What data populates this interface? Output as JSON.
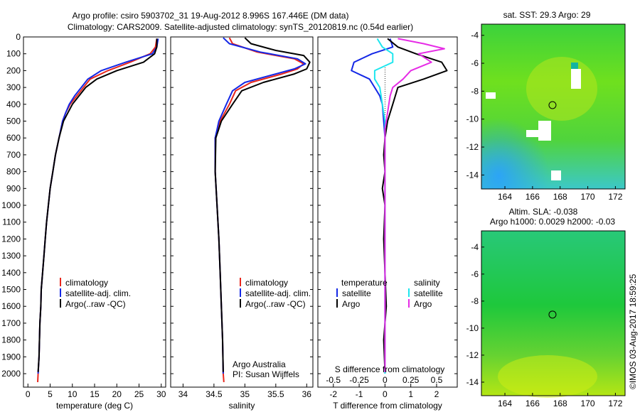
{
  "title_line1": "Argo profile: csiro 5903702_31 19-Aug-2012 8.996S 167.446E (DM data)",
  "title_line2": "Climatology: CARS2009. Satellite-adjusted climatology: synTS_20120819.nc (0.54d earlier)",
  "sst_title": "sat. SST: 29.3 Argo: 29",
  "sla_title1": "Altim. SLA: -0.038",
  "sla_title2": "Argo h1000: 0.0029 h2000: -0.03",
  "credit": "©IMOS 03-Aug-2017 18:59:25",
  "argo_label1": "Argo Australia",
  "argo_label2": "PI: Susan Wijffels",
  "colors": {
    "climatology": "#e8261c",
    "satellite": "#1428e6",
    "argo": "#000000",
    "sal_satellite": "#1ee6ee",
    "sal_argo": "#e62ce6"
  },
  "legend": {
    "climatology": "climatology",
    "satellite": "satellite-adj. clim.",
    "argo": "Argo(..raw -QC)"
  },
  "diff_legend": {
    "temp_head": "temperature",
    "sal_head": "salinity",
    "satellite": "satellite",
    "argo": "Argo"
  },
  "chart_data": [
    {
      "type": "line",
      "name": "temperature_profile",
      "xlabel": "temperature (deg C)",
      "ylabel": "",
      "xlim": [
        -1,
        31
      ],
      "ylim": [
        2080,
        0
      ],
      "xticks": [
        0,
        5,
        10,
        15,
        20,
        25,
        30
      ],
      "yticks": [
        0,
        100,
        200,
        300,
        400,
        500,
        600,
        700,
        800,
        900,
        1000,
        1100,
        1200,
        1300,
        1400,
        1500,
        1600,
        1700,
        1800,
        1900,
        2000
      ],
      "series": [
        {
          "key": "climatology",
          "points": [
            [
              29.0,
              10
            ],
            [
              28.7,
              60
            ],
            [
              27.5,
              100
            ],
            [
              23,
              150
            ],
            [
              18,
              200
            ],
            [
              14,
              250
            ],
            [
              12.5,
              300
            ],
            [
              11,
              350
            ],
            [
              9.5,
              400
            ],
            [
              8.5,
              450
            ],
            [
              7.8,
              500
            ],
            [
              7,
              600
            ],
            [
              6.2,
              700
            ],
            [
              5.6,
              800
            ],
            [
              5.0,
              900
            ],
            [
              4.6,
              1000
            ],
            [
              4.2,
              1100
            ],
            [
              3.9,
              1200
            ],
            [
              3.6,
              1300
            ],
            [
              3.3,
              1400
            ],
            [
              3.0,
              1500
            ],
            [
              2.9,
              1600
            ],
            [
              2.7,
              1700
            ],
            [
              2.6,
              1800
            ],
            [
              2.5,
              1900
            ],
            [
              2.3,
              2000
            ],
            [
              2.2,
              2050
            ]
          ]
        },
        {
          "key": "satellite",
          "points": [
            [
              29.3,
              10
            ],
            [
              29.0,
              60
            ],
            [
              28.0,
              100
            ],
            [
              22,
              150
            ],
            [
              16.5,
              200
            ],
            [
              13.5,
              250
            ],
            [
              12,
              300
            ],
            [
              10.5,
              350
            ],
            [
              9.3,
              400
            ],
            [
              8.5,
              450
            ],
            [
              7.8,
              500
            ],
            [
              7,
              600
            ],
            [
              6.2,
              700
            ],
            [
              5.6,
              800
            ],
            [
              5.0,
              900
            ],
            [
              4.6,
              1000
            ],
            [
              4.2,
              1100
            ],
            [
              3.9,
              1200
            ],
            [
              3.6,
              1300
            ],
            [
              3.3,
              1400
            ],
            [
              3.0,
              1500
            ],
            [
              2.9,
              1600
            ],
            [
              2.7,
              1700
            ],
            [
              2.6,
              1800
            ],
            [
              2.5,
              1900
            ],
            [
              2.3,
              2000
            ]
          ]
        },
        {
          "key": "argo",
          "points": [
            [
              29.0,
              10
            ],
            [
              29.0,
              60
            ],
            [
              28.5,
              100
            ],
            [
              26,
              150
            ],
            [
              20,
              200
            ],
            [
              15.5,
              250
            ],
            [
              13,
              300
            ],
            [
              11.5,
              350
            ],
            [
              10,
              400
            ],
            [
              9,
              450
            ],
            [
              8.0,
              500
            ],
            [
              7,
              600
            ],
            [
              6.2,
              700
            ],
            [
              5.6,
              800
            ],
            [
              5.0,
              900
            ],
            [
              4.6,
              1000
            ],
            [
              4.2,
              1100
            ],
            [
              3.9,
              1200
            ],
            [
              3.6,
              1300
            ],
            [
              3.3,
              1400
            ],
            [
              3.0,
              1500
            ],
            [
              2.9,
              1600
            ],
            [
              2.7,
              1700
            ],
            [
              2.6,
              1800
            ],
            [
              2.5,
              1900
            ],
            [
              2.3,
              1990
            ]
          ]
        }
      ]
    },
    {
      "type": "line",
      "name": "salinity_profile",
      "xlabel": "salinity",
      "ylabel": "",
      "xlim": [
        33.8,
        36.1
      ],
      "ylim": [
        2080,
        0
      ],
      "xticks": [
        34,
        34.5,
        35,
        35.5,
        36
      ],
      "series": [
        {
          "key": "climatology",
          "points": [
            [
              34.75,
              5
            ],
            [
              34.8,
              40
            ],
            [
              35.2,
              90
            ],
            [
              35.8,
              130
            ],
            [
              35.95,
              160
            ],
            [
              35.85,
              190
            ],
            [
              35.6,
              220
            ],
            [
              35.1,
              270
            ],
            [
              34.85,
              320
            ],
            [
              34.75,
              400
            ],
            [
              34.6,
              500
            ],
            [
              34.52,
              600
            ],
            [
              34.52,
              800
            ],
            [
              34.55,
              1000
            ],
            [
              34.58,
              1200
            ],
            [
              34.6,
              1400
            ],
            [
              34.62,
              1600
            ],
            [
              34.64,
              1800
            ],
            [
              34.65,
              2000
            ],
            [
              34.66,
              2050
            ]
          ]
        },
        {
          "key": "satellite",
          "points": [
            [
              34.65,
              5
            ],
            [
              34.75,
              40
            ],
            [
              35.25,
              90
            ],
            [
              35.85,
              130
            ],
            [
              35.98,
              160
            ],
            [
              35.8,
              190
            ],
            [
              35.5,
              220
            ],
            [
              35.0,
              270
            ],
            [
              34.8,
              320
            ],
            [
              34.7,
              400
            ],
            [
              34.58,
              500
            ],
            [
              34.52,
              600
            ],
            [
              34.52,
              800
            ],
            [
              34.55,
              1000
            ],
            [
              34.58,
              1200
            ],
            [
              34.6,
              1400
            ],
            [
              34.62,
              1600
            ],
            [
              34.64,
              1800
            ],
            [
              34.65,
              2000
            ]
          ]
        },
        {
          "key": "argo",
          "points": [
            [
              35.0,
              5
            ],
            [
              35.1,
              40
            ],
            [
              35.5,
              80
            ],
            [
              35.95,
              110
            ],
            [
              36.05,
              150
            ],
            [
              36.0,
              190
            ],
            [
              35.8,
              220
            ],
            [
              35.3,
              270
            ],
            [
              34.95,
              320
            ],
            [
              34.8,
              400
            ],
            [
              34.62,
              500
            ],
            [
              34.53,
              600
            ],
            [
              34.52,
              800
            ],
            [
              34.55,
              1000
            ],
            [
              34.58,
              1200
            ],
            [
              34.6,
              1400
            ],
            [
              34.62,
              1600
            ],
            [
              34.64,
              1800
            ],
            [
              34.65,
              1990
            ]
          ]
        }
      ]
    },
    {
      "type": "line",
      "name": "difference_profile",
      "xlabel": "T difference from climatology",
      "x2label": "S difference from climatology",
      "xlim": [
        -2.6,
        2.8
      ],
      "ylim": [
        2080,
        0
      ],
      "xticks": [
        -2,
        -1,
        0,
        1,
        2
      ],
      "x2ticks": [
        -0.5,
        -0.25,
        0,
        0.25,
        0.5
      ],
      "x2tick_labels": [
        "-0.5",
        "-0.25",
        "0",
        "0.25",
        "0.5"
      ],
      "series": [
        {
          "key": "temp_satellite",
          "points": [
            [
              0.2,
              10
            ],
            [
              0.3,
              60
            ],
            [
              -0.5,
              100
            ],
            [
              -1.2,
              150
            ],
            [
              -1.3,
              200
            ],
            [
              -0.6,
              250
            ],
            [
              -0.4,
              300
            ],
            [
              -0.2,
              350
            ],
            [
              -0.1,
              400
            ],
            [
              -0.05,
              500
            ],
            [
              0,
              600
            ],
            [
              0,
              800
            ],
            [
              0,
              1000
            ],
            [
              0,
              1200
            ],
            [
              0,
              1400
            ],
            [
              0,
              1600
            ],
            [
              0,
              1800
            ],
            [
              0,
              2000
            ]
          ]
        },
        {
          "key": "temp_argo",
          "points": [
            [
              0.1,
              10
            ],
            [
              0.5,
              60
            ],
            [
              1.2,
              100
            ],
            [
              2.2,
              150
            ],
            [
              2.4,
              200
            ],
            [
              1.5,
              250
            ],
            [
              0.5,
              300
            ],
            [
              0.4,
              350
            ],
            [
              0.3,
              400
            ],
            [
              0.1,
              500
            ],
            [
              0,
              600
            ],
            [
              -0.05,
              700
            ],
            [
              0,
              800
            ],
            [
              -0.1,
              900
            ],
            [
              0,
              1000
            ],
            [
              -0.05,
              1200
            ],
            [
              0,
              1400
            ],
            [
              0.05,
              1600
            ],
            [
              -0.05,
              1800
            ],
            [
              0,
              1990
            ]
          ]
        },
        {
          "key": "sal_satellite",
          "points": [
            [
              -0.3,
              10
            ],
            [
              -0.1,
              60
            ],
            [
              0.3,
              100
            ],
            [
              0.3,
              150
            ],
            [
              -0.4,
              200
            ],
            [
              -0.4,
              250
            ],
            [
              -0.2,
              300
            ],
            [
              -0.1,
              400
            ],
            [
              0,
              500
            ],
            [
              0,
              600
            ],
            [
              0,
              800
            ],
            [
              0,
              1000
            ],
            [
              0,
              1200
            ],
            [
              0,
              1400
            ],
            [
              0,
              1600
            ],
            [
              0,
              1800
            ],
            [
              0,
              2000
            ]
          ]
        },
        {
          "key": "sal_argo",
          "points": [
            [
              0.5,
              10
            ],
            [
              1.5,
              40
            ],
            [
              2.3,
              70
            ],
            [
              1.3,
              100
            ],
            [
              1.8,
              150
            ],
            [
              1.0,
              200
            ],
            [
              0.7,
              250
            ],
            [
              0.3,
              300
            ],
            [
              0.2,
              350
            ],
            [
              0.1,
              450
            ],
            [
              0,
              550
            ],
            [
              0,
              800
            ],
            [
              0,
              1000
            ],
            [
              0,
              1200
            ],
            [
              0,
              1400
            ],
            [
              0,
              1600
            ],
            [
              0,
              1800
            ],
            [
              0,
              1990
            ]
          ]
        }
      ]
    },
    {
      "type": "heatmap",
      "name": "sst_map",
      "xlim": [
        162.3,
        172.7
      ],
      "ylim": [
        -15,
        -3.2
      ],
      "xticks": [
        164,
        166,
        168,
        170,
        172
      ],
      "yticks": [
        -4,
        -6,
        -8,
        -10,
        -12,
        -14
      ],
      "colormap": "jet",
      "argo_position": [
        167.446,
        -8.996
      ]
    },
    {
      "type": "heatmap",
      "name": "sla_map",
      "xlim": [
        162.3,
        172.7
      ],
      "ylim": [
        -15,
        -2.8
      ],
      "xticks": [
        164,
        166,
        168,
        170,
        172
      ],
      "yticks": [
        -4,
        -6,
        -8,
        -10,
        -12,
        -14
      ],
      "colormap": "jet",
      "argo_position": [
        167.446,
        -8.996
      ]
    }
  ]
}
